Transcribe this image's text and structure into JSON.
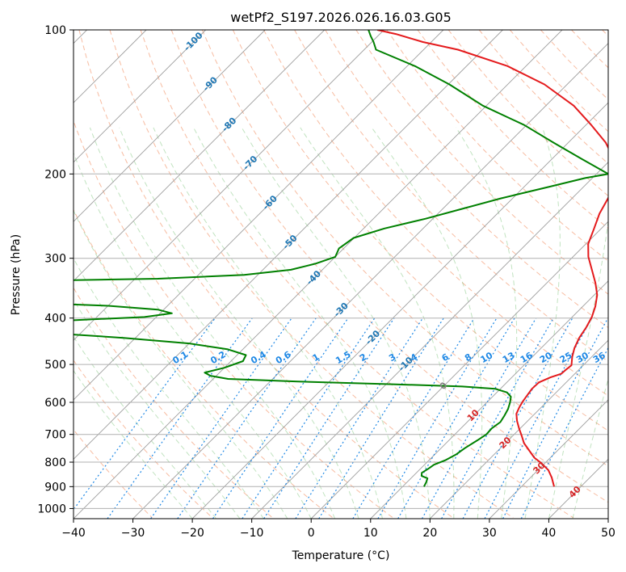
{
  "chart_data": {
    "type": "skew-t",
    "title": "wetPf2_S197.2026.026.16.03.G05",
    "xlabel": "Temperature (°C)",
    "ylabel": "Pressure (hPa)",
    "xlim": [
      -40,
      50
    ],
    "ylim": [
      1050,
      100
    ],
    "y_scale": "log",
    "grid": true,
    "x_ticks": [
      "−40",
      "−30",
      "−20",
      "−10",
      "0",
      "10",
      "20",
      "30",
      "40",
      "50"
    ],
    "x_tick_values": [
      -40,
      -30,
      -20,
      -10,
      0,
      10,
      20,
      30,
      40,
      50
    ],
    "y_ticks": [
      "100",
      "200",
      "300",
      "400",
      "500",
      "600",
      "700",
      "800",
      "900",
      "1000"
    ],
    "y_tick_values": [
      100,
      200,
      300,
      400,
      500,
      600,
      700,
      800,
      900,
      1000
    ],
    "isotherm_labels": [
      {
        "text": "-100",
        "t": -100,
        "p": 106
      },
      {
        "text": "-90",
        "t": -90,
        "p": 130
      },
      {
        "text": "-80",
        "t": -80,
        "p": 158
      },
      {
        "text": "-70",
        "t": -70,
        "p": 190
      },
      {
        "text": "-60",
        "t": -60,
        "p": 230
      },
      {
        "text": "-50",
        "t": -50,
        "p": 278
      },
      {
        "text": "-40",
        "t": -40,
        "p": 330
      },
      {
        "text": "-30",
        "t": -30,
        "p": 385
      },
      {
        "text": "-20",
        "t": -20,
        "p": 440
      },
      {
        "text": "-10",
        "t": -10,
        "p": 500
      },
      {
        "text": "0",
        "t": 0,
        "p": 555
      },
      {
        "text": "10",
        "t": 10,
        "p": 640
      },
      {
        "text": "20",
        "t": 20,
        "p": 730
      },
      {
        "text": "30",
        "t": 30,
        "p": 825
      },
      {
        "text": "40",
        "t": 40,
        "p": 925
      }
    ],
    "mixing_ratio_labels": [
      "0.1",
      "0.2",
      "0.4",
      "0.6",
      "1",
      "1.5",
      "2",
      "3",
      "4",
      "6",
      "8",
      "10",
      "13",
      "16",
      "20",
      "25",
      "30",
      "36"
    ],
    "mixing_ratio_values": [
      0.1,
      0.2,
      0.4,
      0.6,
      1,
      1.5,
      2,
      3,
      4,
      6,
      8,
      10,
      13,
      16,
      20,
      25,
      30,
      36
    ],
    "mixing_ratio_label_pressure": 500,
    "series": [
      {
        "color": "#e41a1c",
        "role": "temperature",
        "points": [
          [
            35.5,
            900
          ],
          [
            33.6,
            862
          ],
          [
            31.8,
            832
          ],
          [
            29.5,
            805
          ],
          [
            27.3,
            783
          ],
          [
            25.2,
            756
          ],
          [
            23.1,
            730
          ],
          [
            21.5,
            705
          ],
          [
            19.8,
            680
          ],
          [
            18.2,
            656
          ],
          [
            16.9,
            634
          ],
          [
            16.3,
            615
          ],
          [
            15.9,
            598
          ],
          [
            15.6,
            580
          ],
          [
            15.3,
            562
          ],
          [
            15.4,
            545
          ],
          [
            16.5,
            532
          ],
          [
            17.7,
            523
          ],
          [
            17.8,
            514
          ],
          [
            18.0,
            502
          ],
          [
            16.7,
            482
          ],
          [
            15.6,
            462
          ],
          [
            14.7,
            440
          ],
          [
            14.1,
            418
          ],
          [
            13.3,
            398
          ],
          [
            12.1,
            378
          ],
          [
            10.5,
            358
          ],
          [
            8.2,
            338
          ],
          [
            5.5,
            318
          ],
          [
            2.6,
            298
          ],
          [
            0.4,
            280
          ],
          [
            -1.2,
            260
          ],
          [
            -2.8,
            242
          ],
          [
            -4.0,
            224
          ],
          [
            -5.2,
            210
          ],
          [
            -6.1,
            200
          ],
          [
            -9.6,
            186
          ],
          [
            -13.7,
            172
          ],
          [
            -19.1,
            158
          ],
          [
            -25.3,
            144
          ],
          [
            -33.8,
            130
          ],
          [
            -43.1,
            119
          ],
          [
            -54.2,
            110
          ],
          [
            -61.4,
            106
          ],
          [
            -67.3,
            102
          ],
          [
            -71.1,
            100
          ]
        ]
      },
      {
        "color": "#008000",
        "role": "dewpoint",
        "points": [
          [
            13.6,
            900
          ],
          [
            13.2,
            880
          ],
          [
            12.8,
            865
          ],
          [
            11.4,
            855
          ],
          [
            10.9,
            842
          ],
          [
            11.3,
            826
          ],
          [
            11.6,
            810
          ],
          [
            12.8,
            792
          ],
          [
            13.6,
            770
          ],
          [
            14.0,
            748
          ],
          [
            14.8,
            720
          ],
          [
            15.3,
            700
          ],
          [
            15.2,
            680
          ],
          [
            15.6,
            660
          ],
          [
            15.2,
            640
          ],
          [
            14.7,
            620
          ],
          [
            13.9,
            600
          ],
          [
            13.1,
            584
          ],
          [
            11.7,
            572
          ],
          [
            9.1,
            562
          ],
          [
            3.2,
            556
          ],
          [
            -8.9,
            550
          ],
          [
            -25.3,
            543
          ],
          [
            -37.5,
            536
          ],
          [
            -41.0,
            528
          ],
          [
            -42.5,
            520
          ],
          [
            -40.0,
            508
          ],
          [
            -38.0,
            492
          ],
          [
            -38.5,
            478
          ],
          [
            -42.5,
            465
          ],
          [
            -50.0,
            452
          ],
          [
            -62.0,
            440
          ],
          [
            -75.0,
            430
          ],
          [
            -85.0,
            422
          ],
          [
            -92.0,
            416
          ],
          [
            -88.0,
            411
          ],
          [
            -75.0,
            405
          ],
          [
            -62.0,
            398
          ],
          [
            -58.0,
            391
          ],
          [
            -61.0,
            384
          ],
          [
            -70.0,
            377
          ],
          [
            -83.0,
            372
          ],
          [
            -92.0,
            369
          ],
          [
            -98.0,
            366
          ],
          [
            -97.0,
            346
          ],
          [
            -90.0,
            338
          ],
          [
            -84.0,
            334
          ],
          [
            -66.2,
            331
          ],
          [
            -52.3,
            325
          ],
          [
            -45.3,
            317
          ],
          [
            -42.2,
            308
          ],
          [
            -40.0,
            298
          ],
          [
            -40.8,
            286
          ],
          [
            -40.1,
            272
          ],
          [
            -36.5,
            260
          ],
          [
            -31.2,
            248
          ],
          [
            -26.5,
            236
          ],
          [
            -22.0,
            225
          ],
          [
            -15.9,
            213
          ],
          [
            -11.2,
            204
          ],
          [
            -8.0,
            200
          ],
          [
            -15.0,
            186
          ],
          [
            -22.5,
            172
          ],
          [
            -30.4,
            158
          ],
          [
            -40.6,
            144
          ],
          [
            -49.8,
            130
          ],
          [
            -58.7,
            119
          ],
          [
            -68.0,
            110
          ],
          [
            -69.7,
            106
          ],
          [
            -71.2,
            103
          ],
          [
            -72.6,
            100
          ]
        ]
      }
    ]
  }
}
